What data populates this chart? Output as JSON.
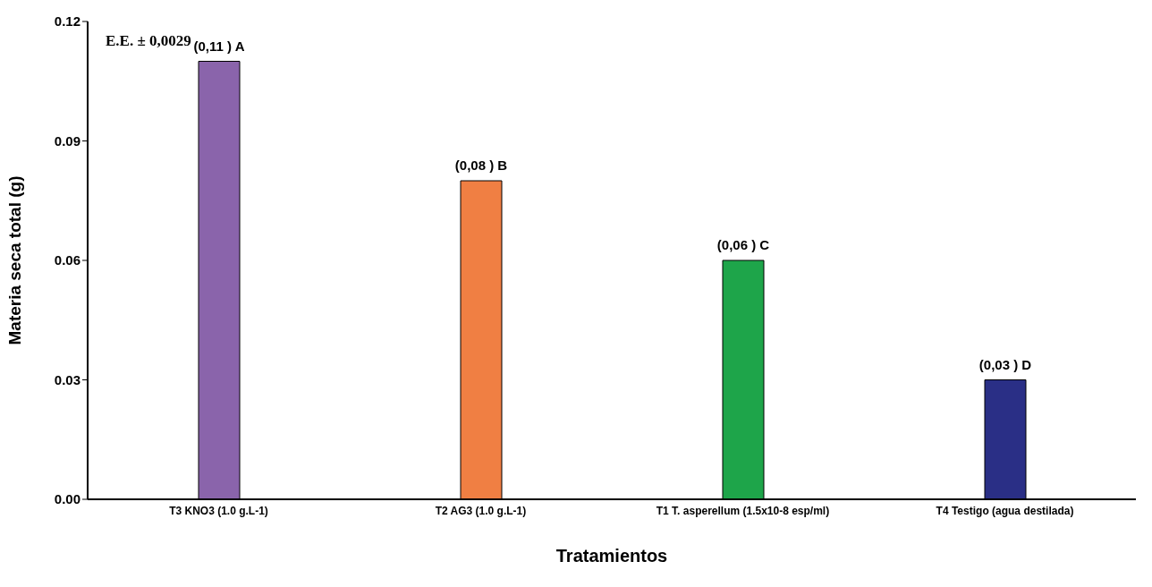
{
  "chart_data": {
    "type": "bar",
    "xlabel": "Tratamientos",
    "ylabel": "Materia seca total (g)",
    "categories": [
      "T3 KNO3 (1.0 g.L-1)",
      "T2 AG3 (1.0 g.L-1)",
      "T1 T. asperellum (1.5x10-8 esp/ml)",
      "T4 Testigo (agua destilada)"
    ],
    "values": [
      0.11,
      0.08,
      0.06,
      0.03
    ],
    "colors": [
      "#8a64ab",
      "#f07f43",
      "#1ea54a",
      "#2a2f86"
    ],
    "value_labels": [
      "(0,11 ) A",
      "(0,08 ) B",
      "(0,06 ) C",
      "(0,03 ) D"
    ],
    "ylim": [
      0,
      0.12
    ],
    "yticks": [
      {
        "value": 0,
        "label": "0.00"
      },
      0.03,
      0.06,
      0.09,
      0.12
    ],
    "annotations": [
      "E.E. ± 0,0029"
    ],
    "grid": false,
    "legend": false
  }
}
